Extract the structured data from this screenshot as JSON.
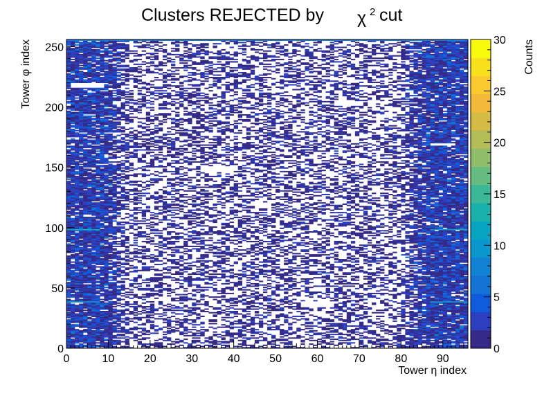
{
  "chart_data": {
    "type": "heatmap",
    "title_main": "Clusters REJECTED by",
    "title_symbol": "χ",
    "title_superscript": "2",
    "title_suffix": "cut",
    "xlabel": "Tower η index",
    "ylabel": "Tower φ index",
    "colorbar_label": "Counts",
    "xlim": [
      0,
      96
    ],
    "ylim": [
      0,
      256
    ],
    "zlim": [
      0,
      30
    ],
    "x_bins": 96,
    "y_bins": 256,
    "x_ticks": [
      0,
      10,
      20,
      30,
      40,
      50,
      60,
      70,
      80,
      90
    ],
    "y_ticks": [
      0,
      50,
      100,
      150,
      200,
      250
    ],
    "z_ticks": [
      0,
      5,
      10,
      15,
      20,
      25,
      30
    ],
    "colormap": "parula",
    "palette": [
      "#352a87",
      "#2c3fbe",
      "#0f5cdd",
      "#1374d6",
      "#1282d4",
      "#0c96ce",
      "#08a5c1",
      "#1bb1ab",
      "#3cb898",
      "#66bc80",
      "#8fbd6a",
      "#b3bc56",
      "#d4bb44",
      "#f2b93a",
      "#fcca2e",
      "#f9e01d",
      "#f9fb0e"
    ],
    "empty_regions": [
      {
        "x": [
          1,
          9
        ],
        "y": [
          216,
          220
        ]
      },
      {
        "x": [
          64,
          71
        ],
        "y": [
          201,
          205
        ]
      },
      {
        "x": [
          32,
          40
        ],
        "y": [
          146,
          151
        ]
      },
      {
        "x": [
          56,
          64
        ],
        "y": [
          34,
          39
        ]
      },
      {
        "x": [
          87,
          93
        ],
        "y": [
          168,
          170
        ]
      }
    ],
    "hot_rows": [
      {
        "x": [
          0,
          8
        ],
        "y": 38,
        "value": 12
      },
      {
        "x": [
          87,
          96
        ],
        "y": 38,
        "value": 12
      },
      {
        "x": [
          0,
          8
        ],
        "y": 98,
        "value": 13
      },
      {
        "x": [
          87,
          96
        ],
        "y": 98,
        "value": 13
      },
      {
        "x": [
          0,
          96
        ],
        "y": 256,
        "value": 8
      }
    ]
  }
}
